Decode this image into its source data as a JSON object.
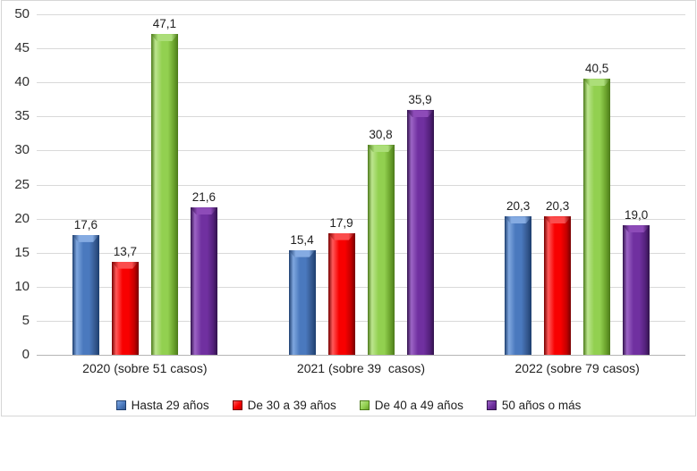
{
  "chart_data": {
    "type": "bar",
    "title": "",
    "categories": [
      "2020 (sobre 51 casos)",
      "2021 (sobre 39  casos)",
      "2022 (sobre 79 casos)"
    ],
    "series": [
      {
        "name": "Hasta 29 años",
        "color": "#4a79be",
        "values": [
          17.6,
          15.4,
          20.3
        ]
      },
      {
        "name": "De 30 a 39 años",
        "color": "#f80000",
        "values": [
          13.7,
          17.9,
          20.3
        ]
      },
      {
        "name": "De 40 a 49 años",
        "color": "#92d050",
        "values": [
          47.1,
          30.8,
          40.5
        ]
      },
      {
        "name": "50 años o más",
        "color": "#7030a0",
        "values": [
          21.6,
          35.9,
          19.0
        ]
      }
    ],
    "value_labels": [
      [
        "17,6",
        "13,7",
        "47,1",
        "21,6"
      ],
      [
        "15,4",
        "17,9",
        "30,8",
        "35,9"
      ],
      [
        "20,3",
        "20,3",
        "40,5",
        "19,0"
      ]
    ],
    "xlabel": "",
    "ylabel": "",
    "ylim": [
      0,
      50
    ],
    "y_ticks": [
      "0",
      "5",
      "10",
      "15",
      "20",
      "25",
      "30",
      "35",
      "40",
      "45",
      "50"
    ],
    "grid": true,
    "legend_position": "bottom",
    "gridline_color": "#d9d9d9",
    "axis_line_color": "#b5b5b5",
    "frame_border_color": "#d6d6d6"
  }
}
